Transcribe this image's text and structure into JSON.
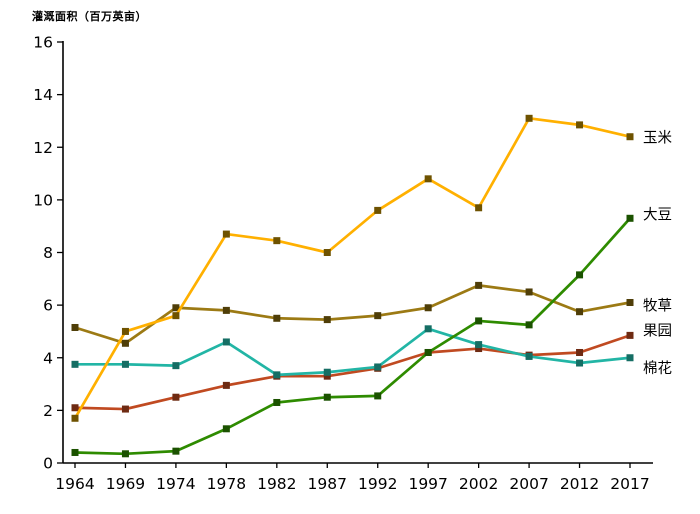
{
  "chart_data": {
    "type": "line",
    "title": "灌溉面积（百万英亩）",
    "xlabel": "",
    "ylabel": "灌溉面积（百万英亩）",
    "x": [
      1964,
      1969,
      1974,
      1978,
      1982,
      1987,
      1992,
      1997,
      2002,
      2007,
      2012,
      2017
    ],
    "ylim": [
      0,
      16
    ],
    "ytick_step": 2,
    "grid": false,
    "legend_position": "right-end-labels",
    "marker": "square",
    "series": [
      {
        "name": "牧草",
        "color": "#9C7A14",
        "marker_color": "#4F3E08",
        "label_dy": 3,
        "values": [
          5.15,
          4.55,
          5.9,
          5.8,
          5.5,
          5.45,
          5.6,
          5.9,
          6.75,
          6.5,
          5.75,
          6.1
        ]
      },
      {
        "name": "果园",
        "color": "#C04A21",
        "marker_color": "#6E2A12",
        "label_dy": -5,
        "values": [
          2.1,
          2.05,
          2.5,
          2.95,
          3.3,
          3.3,
          3.6,
          4.2,
          4.35,
          4.1,
          4.2,
          4.85
        ]
      },
      {
        "name": "棉花",
        "color": "#22B5A5",
        "marker_color": "#156E64",
        "label_dy": 10,
        "values": [
          3.75,
          3.75,
          3.7,
          4.6,
          3.35,
          3.45,
          3.65,
          5.1,
          4.5,
          4.05,
          3.8,
          4.0
        ]
      },
      {
        "name": "大豆",
        "color": "#2E8B00",
        "marker_color": "#1B5200",
        "label_dy": -4,
        "values": [
          0.4,
          0.35,
          0.45,
          1.3,
          2.3,
          2.5,
          2.55,
          4.2,
          5.4,
          5.25,
          7.15,
          9.3
        ]
      },
      {
        "name": "玉米",
        "color": "#FFB000",
        "marker_color": "#6E5200",
        "label_dy": 1,
        "values": [
          1.7,
          5.0,
          5.6,
          8.7,
          8.45,
          8.0,
          9.6,
          10.8,
          9.7,
          13.1,
          12.85,
          12.4
        ]
      }
    ]
  }
}
